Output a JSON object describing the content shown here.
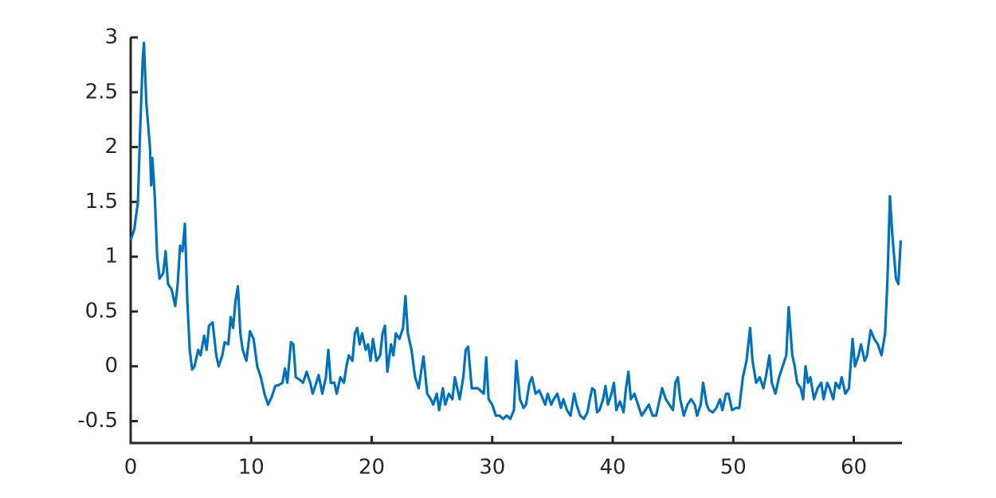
{
  "chart_data": {
    "type": "line",
    "x": [
      0,
      0.3,
      0.6,
      0.8,
      1.0,
      1.1,
      1.3,
      1.6,
      1.7,
      1.8,
      2.0,
      2.2,
      2.4,
      2.7,
      2.9,
      3.1,
      3.4,
      3.7,
      3.9,
      4.1,
      4.3,
      4.5,
      4.7,
      4.9,
      5.1,
      5.3,
      5.6,
      5.8,
      6.1,
      6.3,
      6.5,
      6.8,
      7.1,
      7.3,
      7.6,
      7.8,
      8.1,
      8.3,
      8.5,
      8.7,
      8.9,
      9.1,
      9.3,
      9.6,
      9.9,
      10.2,
      10.5,
      10.8,
      11.1,
      11.4,
      11.7,
      12.0,
      12.3,
      12.6,
      12.8,
      13.0,
      13.3,
      13.5,
      13.7,
      14.0,
      14.3,
      14.6,
      14.9,
      15.1,
      15.4,
      15.6,
      15.9,
      16.2,
      16.4,
      16.6,
      16.9,
      17.1,
      17.4,
      17.7,
      17.9,
      18.1,
      18.4,
      18.6,
      18.8,
      19.0,
      19.2,
      19.5,
      19.7,
      19.9,
      20.1,
      20.4,
      20.7,
      20.9,
      21.1,
      21.3,
      21.6,
      21.8,
      22.0,
      22.3,
      22.6,
      22.8,
      23.0,
      23.3,
      23.6,
      23.9,
      24.1,
      24.3,
      24.6,
      24.9,
      25.1,
      25.4,
      25.6,
      25.9,
      26.1,
      26.4,
      26.7,
      26.9,
      27.1,
      27.3,
      27.6,
      27.8,
      28.0,
      28.3,
      28.5,
      28.8,
      29.0,
      29.3,
      29.5,
      29.7,
      30.0,
      30.3,
      30.6,
      30.9,
      31.2,
      31.5,
      31.8,
      32.0,
      32.3,
      32.6,
      32.8,
      33.1,
      33.3,
      33.6,
      33.9,
      34.1,
      34.4,
      34.6,
      34.9,
      35.1,
      35.4,
      35.7,
      35.9,
      36.2,
      36.5,
      36.8,
      37.0,
      37.3,
      37.6,
      37.9,
      38.1,
      38.3,
      38.5,
      38.7,
      38.9,
      39.2,
      39.4,
      39.6,
      39.9,
      40.1,
      40.3,
      40.6,
      40.9,
      41.1,
      41.3,
      41.5,
      41.8,
      42.1,
      42.4,
      42.7,
      43.0,
      43.3,
      43.6,
      43.9,
      44.1,
      44.4,
      44.7,
      45.0,
      45.2,
      45.4,
      45.6,
      45.9,
      46.2,
      46.5,
      46.8,
      47.0,
      47.3,
      47.5,
      47.8,
      48.0,
      48.3,
      48.6,
      48.9,
      49.1,
      49.4,
      49.6,
      49.9,
      50.2,
      50.5,
      50.8,
      51.1,
      51.4,
      51.6,
      51.9,
      52.2,
      52.5,
      52.7,
      53.0,
      53.2,
      53.5,
      53.8,
      54.1,
      54.4,
      54.6,
      54.9,
      55.1,
      55.3,
      55.6,
      55.8,
      56.0,
      56.2,
      56.4,
      56.7,
      57.0,
      57.3,
      57.5,
      57.8,
      58.0,
      58.3,
      58.5,
      58.8,
      59.0,
      59.3,
      59.6,
      59.9,
      60.1,
      60.4,
      60.6,
      60.9,
      61.1,
      61.4,
      61.7,
      62.0,
      62.3,
      62.6,
      62.8,
      63.0,
      63.2,
      63.5,
      63.7,
      63.9
    ],
    "series": [
      {
        "color": "#0072bd",
        "values": [
          1.15,
          1.25,
          1.5,
          2.2,
          2.8,
          2.95,
          2.4,
          2.0,
          1.65,
          1.9,
          1.55,
          1.0,
          0.8,
          0.85,
          1.05,
          0.75,
          0.7,
          0.55,
          0.75,
          1.1,
          1.05,
          1.3,
          0.6,
          0.15,
          -0.03,
          0.0,
          0.15,
          0.1,
          0.28,
          0.15,
          0.37,
          0.4,
          0.1,
          0.0,
          0.1,
          0.22,
          0.2,
          0.45,
          0.35,
          0.6,
          0.73,
          0.3,
          0.15,
          0.05,
          0.32,
          0.25,
          0.0,
          -0.1,
          -0.25,
          -0.35,
          -0.28,
          -0.18,
          -0.17,
          -0.15,
          -0.02,
          -0.15,
          0.22,
          0.2,
          -0.1,
          -0.12,
          -0.15,
          -0.05,
          -0.15,
          -0.25,
          -0.15,
          -0.08,
          -0.25,
          -0.1,
          0.15,
          -0.15,
          -0.15,
          -0.25,
          -0.1,
          -0.15,
          0.0,
          0.1,
          0.05,
          0.3,
          0.35,
          0.2,
          0.3,
          0.15,
          0.2,
          0.05,
          0.25,
          0.05,
          0.1,
          0.3,
          0.37,
          -0.05,
          0.2,
          0.1,
          0.3,
          0.25,
          0.35,
          0.64,
          0.3,
          0.15,
          -0.1,
          -0.2,
          -0.05,
          0.09,
          -0.25,
          -0.3,
          -0.35,
          -0.25,
          -0.4,
          -0.2,
          -0.35,
          -0.25,
          -0.3,
          -0.1,
          -0.2,
          -0.3,
          -0.1,
          0.15,
          0.18,
          -0.2,
          -0.2,
          -0.2,
          -0.22,
          -0.25,
          0.08,
          -0.3,
          -0.35,
          -0.45,
          -0.45,
          -0.48,
          -0.45,
          -0.48,
          -0.4,
          0.05,
          -0.3,
          -0.38,
          -0.35,
          -0.15,
          -0.1,
          -0.25,
          -0.22,
          -0.27,
          -0.35,
          -0.25,
          -0.35,
          -0.3,
          -0.25,
          -0.38,
          -0.3,
          -0.4,
          -0.45,
          -0.25,
          -0.35,
          -0.45,
          -0.48,
          -0.42,
          -0.3,
          -0.2,
          -0.22,
          -0.42,
          -0.4,
          -0.3,
          -0.18,
          -0.35,
          -0.25,
          -0.15,
          -0.4,
          -0.32,
          -0.42,
          -0.2,
          -0.05,
          -0.3,
          -0.25,
          -0.35,
          -0.45,
          -0.4,
          -0.35,
          -0.45,
          -0.45,
          -0.3,
          -0.2,
          -0.3,
          -0.35,
          -0.4,
          -0.15,
          -0.1,
          -0.3,
          -0.45,
          -0.35,
          -0.3,
          -0.35,
          -0.45,
          -0.35,
          -0.15,
          -0.35,
          -0.4,
          -0.42,
          -0.38,
          -0.3,
          -0.4,
          -0.25,
          -0.25,
          -0.4,
          -0.38,
          -0.38,
          -0.1,
          0.05,
          0.35,
          0.05,
          -0.15,
          -0.1,
          -0.2,
          -0.1,
          0.1,
          -0.15,
          -0.25,
          -0.1,
          0.0,
          0.1,
          0.54,
          0.1,
          0.0,
          -0.15,
          -0.2,
          -0.3,
          0.0,
          -0.15,
          -0.1,
          -0.3,
          -0.2,
          -0.15,
          -0.3,
          -0.15,
          -0.2,
          -0.3,
          -0.15,
          -0.2,
          -0.1,
          -0.25,
          -0.2,
          0.25,
          0.0,
          0.1,
          0.2,
          0.05,
          0.1,
          0.33,
          0.25,
          0.2,
          0.1,
          0.3,
          0.8,
          1.55,
          1.2,
          0.8,
          0.75,
          1.15
        ]
      }
    ],
    "xlim": [
      0,
      64
    ],
    "ylim": [
      -0.7,
      3
    ],
    "xticks": [
      0,
      10,
      20,
      30,
      40,
      50,
      60
    ],
    "yticks": [
      -0.5,
      0,
      0.5,
      1,
      1.5,
      2,
      2.5,
      3
    ]
  }
}
